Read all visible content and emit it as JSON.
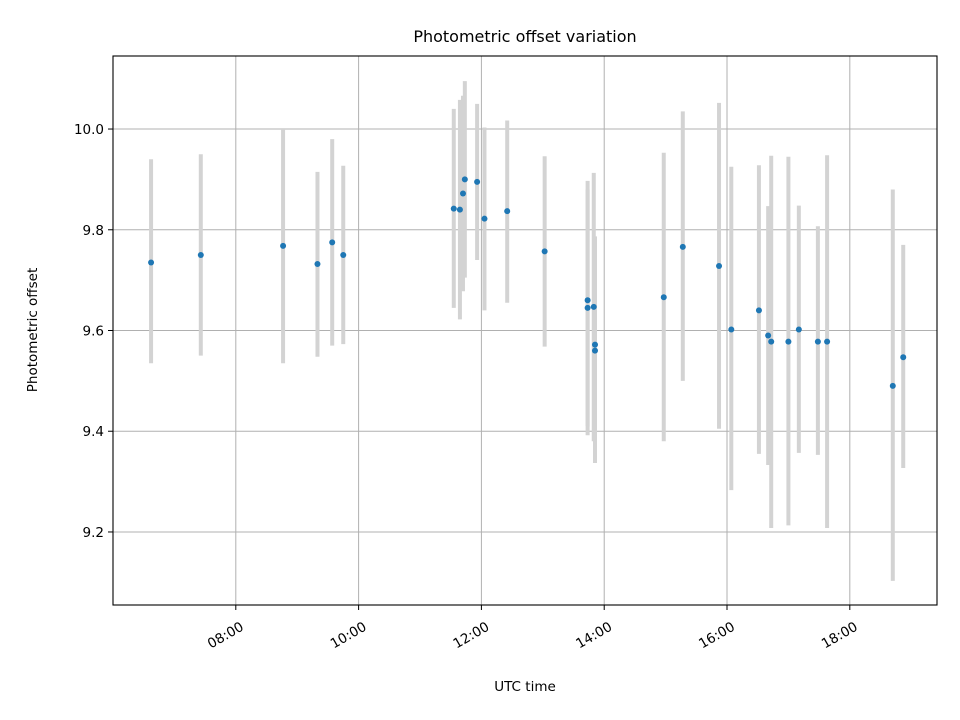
{
  "chart_data": {
    "type": "scatter",
    "title": "Photometric offset variation",
    "xlabel": "UTC time",
    "ylabel": "Photometric offset",
    "x_unit": "hours UTC",
    "xlim": [
      6.0,
      19.42
    ],
    "ylim": [
      9.055,
      10.145
    ],
    "x_ticks": [
      {
        "value": 8,
        "label": "08:00"
      },
      {
        "value": 10,
        "label": "10:00"
      },
      {
        "value": 12,
        "label": "12:00"
      },
      {
        "value": 14,
        "label": "14:00"
      },
      {
        "value": 16,
        "label": "16:00"
      },
      {
        "value": 18,
        "label": "18:00"
      }
    ],
    "y_ticks": [
      {
        "value": 9.2,
        "label": "9.2"
      },
      {
        "value": 9.4,
        "label": "9.4"
      },
      {
        "value": 9.6,
        "label": "9.6"
      },
      {
        "value": 9.8,
        "label": "9.8"
      },
      {
        "value": 10.0,
        "label": "10.0"
      }
    ],
    "grid": true,
    "colors": {
      "marker": "#1f77b4",
      "errorbar": "#d3d3d3"
    },
    "series": [
      {
        "points": [
          {
            "x": 6.62,
            "y": 9.735,
            "lo": 9.535,
            "hi": 9.94
          },
          {
            "x": 7.43,
            "y": 9.75,
            "lo": 9.55,
            "hi": 9.95
          },
          {
            "x": 8.77,
            "y": 9.768,
            "lo": 9.535,
            "hi": 10.0
          },
          {
            "x": 9.33,
            "y": 9.732,
            "lo": 9.548,
            "hi": 9.915
          },
          {
            "x": 9.57,
            "y": 9.775,
            "lo": 9.57,
            "hi": 9.98
          },
          {
            "x": 9.75,
            "y": 9.75,
            "lo": 9.573,
            "hi": 9.927
          },
          {
            "x": 11.55,
            "y": 9.842,
            "lo": 9.645,
            "hi": 10.04
          },
          {
            "x": 11.65,
            "y": 9.84,
            "lo": 9.622,
            "hi": 10.058
          },
          {
            "x": 11.7,
            "y": 9.872,
            "lo": 9.678,
            "hi": 10.066
          },
          {
            "x": 11.73,
            "y": 9.9,
            "lo": 9.705,
            "hi": 10.095
          },
          {
            "x": 11.93,
            "y": 9.895,
            "lo": 9.74,
            "hi": 10.05
          },
          {
            "x": 12.05,
            "y": 9.822,
            "lo": 9.64,
            "hi": 10.003
          },
          {
            "x": 12.42,
            "y": 9.837,
            "lo": 9.655,
            "hi": 10.017
          },
          {
            "x": 13.03,
            "y": 9.757,
            "lo": 9.568,
            "hi": 9.946
          },
          {
            "x": 13.73,
            "y": 9.66,
            "lo": 9.392,
            "hi": 9.897
          },
          {
            "x": 13.73,
            "y": 9.645,
            "lo": 9.41,
            "hi": 9.88
          },
          {
            "x": 13.83,
            "y": 9.647,
            "lo": 9.38,
            "hi": 9.913
          },
          {
            "x": 13.85,
            "y": 9.572,
            "lo": 9.36,
            "hi": 9.787
          },
          {
            "x": 13.85,
            "y": 9.56,
            "lo": 9.337,
            "hi": 9.783
          },
          {
            "x": 14.97,
            "y": 9.666,
            "lo": 9.38,
            "hi": 9.953
          },
          {
            "x": 15.28,
            "y": 9.766,
            "lo": 9.5,
            "hi": 10.035
          },
          {
            "x": 15.87,
            "y": 9.728,
            "lo": 9.405,
            "hi": 10.052
          },
          {
            "x": 16.07,
            "y": 9.602,
            "lo": 9.283,
            "hi": 9.925
          },
          {
            "x": 16.52,
            "y": 9.64,
            "lo": 9.355,
            "hi": 9.928
          },
          {
            "x": 16.67,
            "y": 9.59,
            "lo": 9.333,
            "hi": 9.847
          },
          {
            "x": 16.72,
            "y": 9.578,
            "lo": 9.208,
            "hi": 9.947
          },
          {
            "x": 17.0,
            "y": 9.578,
            "lo": 9.213,
            "hi": 9.945
          },
          {
            "x": 17.17,
            "y": 9.602,
            "lo": 9.357,
            "hi": 9.848
          },
          {
            "x": 17.48,
            "y": 9.578,
            "lo": 9.353,
            "hi": 9.807
          },
          {
            "x": 17.63,
            "y": 9.578,
            "lo": 9.208,
            "hi": 9.948
          },
          {
            "x": 18.7,
            "y": 9.49,
            "lo": 9.103,
            "hi": 9.88
          },
          {
            "x": 18.87,
            "y": 9.547,
            "lo": 9.327,
            "hi": 9.77
          }
        ]
      }
    ]
  }
}
